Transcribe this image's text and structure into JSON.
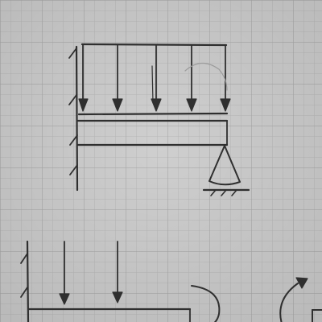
{
  "paper": {
    "background": "#cfcfcf",
    "grid_minor": "#b9b9b9",
    "grid_major": "#a9a9a9",
    "ink": "#2f2f2f"
  },
  "sketch": {
    "description_visible_text": "",
    "top_diagram": {
      "elements": [
        "fixed-wall",
        "distributed-load",
        "beam",
        "pin-support",
        "ground"
      ],
      "load_arrow_count": 5
    },
    "bottom_partial_diagram": {
      "elements": [
        "fixed-wall",
        "load-arrow",
        "load-arrow",
        "beam",
        "moment-arc",
        "moment-arc-arrow"
      ],
      "load_arrow_count": 2
    }
  }
}
